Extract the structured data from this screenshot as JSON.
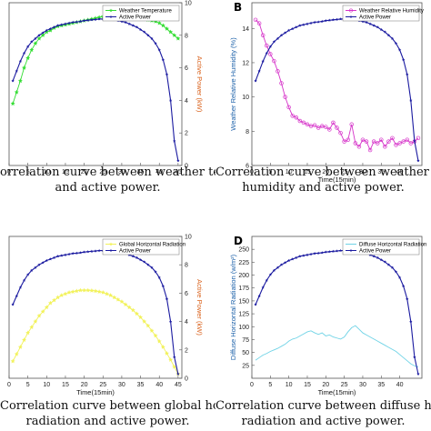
{
  "panels": [
    {
      "letter": "",
      "caption_line1": "orrelation curve between weather temperature",
      "caption_line2": "and active power.",
      "legend": [
        "Weather Temperature",
        "Active Power"
      ],
      "left_ylabel": "",
      "right_ylabel": "Active Power (kW)",
      "xlabel": "",
      "env_color": "#33dd33",
      "env_marker": "star",
      "power_color": "#1a1aa0",
      "right_label_color": "#d9601a"
    },
    {
      "letter": "B",
      "caption_line1": "Correlation curve between weather relati",
      "caption_line2": "humidity and active power.",
      "legend": [
        "Weather Relative Humidity",
        "Active Power"
      ],
      "left_ylabel": "Weather Relative Humidity (%)",
      "right_ylabel": "",
      "xlabel": "Time(15min)",
      "env_color": "#d633c9",
      "env_marker": "circle",
      "power_color": "#1a1aa0",
      "right_label_color": "#d9601a"
    },
    {
      "letter": "",
      "caption_line1": "Correlation curve between global horizontal",
      "caption_line2": "radiation and active power.",
      "legend": [
        "Global Horizontal Radiation",
        "Active Power"
      ],
      "left_ylabel": "",
      "right_ylabel": "Active Power (kW)",
      "xlabel": "Time(15min)",
      "env_color": "#f2f25a",
      "env_marker": "star",
      "power_color": "#1a1aa0",
      "right_label_color": "#d9601a"
    },
    {
      "letter": "D",
      "caption_line1": "Correlation curve between diffuse horizo",
      "caption_line2": "radiation and active power.",
      "legend": [
        "Diffuse Horizontal Radiation",
        "Active Power"
      ],
      "left_ylabel": "Diffuse Horizontal Radiation (w/m²)",
      "right_ylabel": "",
      "xlabel": "Time(15min)",
      "env_color": "#6fd3e6",
      "env_marker": "none",
      "power_color": "#1a1aa0",
      "right_label_color": "#d9601a"
    }
  ],
  "chart_data": [
    {
      "type": "line",
      "x": [
        1,
        2,
        3,
        4,
        5,
        6,
        7,
        8,
        9,
        10,
        11,
        12,
        13,
        14,
        15,
        16,
        17,
        18,
        19,
        20,
        21,
        22,
        23,
        24,
        25,
        26,
        27,
        28,
        29,
        30,
        31,
        32,
        33,
        34,
        35,
        36,
        37,
        38,
        39,
        40,
        41,
        42,
        43,
        44,
        45
      ],
      "xlim": [
        0,
        46
      ],
      "xticks": [
        0,
        5,
        10,
        15,
        20,
        25,
        30,
        35,
        40,
        45
      ],
      "left_ylim": [
        0,
        10
      ],
      "left_yticks": [],
      "right_ylim": [
        0,
        10
      ],
      "right_yticks": [
        0,
        2,
        4,
        6,
        8,
        10
      ],
      "series": [
        {
          "name": "Weather Temperature",
          "axis": "left",
          "values": [
            3.8,
            4.5,
            5.2,
            6.0,
            6.6,
            7.1,
            7.5,
            7.8,
            8.0,
            8.2,
            8.3,
            8.45,
            8.55,
            8.6,
            8.65,
            8.7,
            8.75,
            8.8,
            8.85,
            8.9,
            8.95,
            9.0,
            9.05,
            9.1,
            9.15,
            9.2,
            9.25,
            9.3,
            9.3,
            9.25,
            9.2,
            9.2,
            9.15,
            9.1,
            9.05,
            9.0,
            8.95,
            8.9,
            8.85,
            8.75,
            8.6,
            8.4,
            8.2,
            8.0,
            7.8
          ]
        },
        {
          "name": "Active Power",
          "axis": "right",
          "values": [
            5.2,
            5.8,
            6.4,
            6.9,
            7.3,
            7.6,
            7.8,
            8.0,
            8.15,
            8.3,
            8.4,
            8.5,
            8.6,
            8.65,
            8.7,
            8.75,
            8.8,
            8.82,
            8.85,
            8.9,
            8.92,
            8.95,
            8.97,
            9.0,
            9.0,
            9.0,
            8.98,
            8.95,
            8.9,
            8.85,
            8.8,
            8.7,
            8.6,
            8.5,
            8.35,
            8.2,
            8.0,
            7.8,
            7.5,
            7.1,
            6.5,
            5.6,
            4.0,
            1.5,
            0.3
          ]
        }
      ]
    },
    {
      "type": "line",
      "x": [
        1,
        2,
        3,
        4,
        5,
        6,
        7,
        8,
        9,
        10,
        11,
        12,
        13,
        14,
        15,
        16,
        17,
        18,
        19,
        20,
        21,
        22,
        23,
        24,
        25,
        26,
        27,
        28,
        29,
        30,
        31,
        32,
        33,
        34,
        35,
        36,
        37,
        38,
        39,
        40,
        41,
        42,
        43,
        44,
        45
      ],
      "xlim": [
        0,
        46
      ],
      "xticks": [
        0,
        5,
        10,
        15,
        20,
        25,
        30,
        35,
        40
      ],
      "left_ylim": [
        6,
        15.5
      ],
      "left_yticks": [
        6,
        8,
        10,
        12,
        14
      ],
      "right_ylim": [
        0,
        10
      ],
      "right_yticks": [],
      "series": [
        {
          "name": "Weather Relative Humidity",
          "axis": "left",
          "values": [
            14.5,
            14.3,
            13.6,
            13.0,
            12.5,
            12.1,
            11.5,
            10.8,
            10.0,
            9.4,
            8.9,
            8.8,
            8.6,
            8.5,
            8.4,
            8.3,
            8.35,
            8.2,
            8.3,
            8.25,
            8.1,
            8.5,
            8.2,
            7.9,
            7.4,
            7.5,
            8.4,
            7.3,
            7.1,
            7.5,
            7.4,
            6.9,
            7.4,
            7.3,
            7.5,
            7.1,
            7.4,
            7.6,
            7.2,
            7.3,
            7.4,
            7.5,
            7.3,
            7.4,
            7.6
          ]
        },
        {
          "name": "Active Power",
          "axis": "right",
          "values": [
            5.2,
            5.8,
            6.4,
            6.9,
            7.3,
            7.6,
            7.8,
            8.0,
            8.15,
            8.3,
            8.4,
            8.5,
            8.6,
            8.65,
            8.7,
            8.75,
            8.8,
            8.82,
            8.85,
            8.9,
            8.92,
            8.95,
            8.97,
            9.0,
            9.0,
            9.0,
            8.98,
            8.95,
            8.9,
            8.85,
            8.8,
            8.7,
            8.6,
            8.5,
            8.35,
            8.2,
            8.0,
            7.8,
            7.5,
            7.1,
            6.5,
            5.6,
            4.0,
            1.5,
            0.3
          ]
        }
      ]
    },
    {
      "type": "line",
      "x": [
        1,
        2,
        3,
        4,
        5,
        6,
        7,
        8,
        9,
        10,
        11,
        12,
        13,
        14,
        15,
        16,
        17,
        18,
        19,
        20,
        21,
        22,
        23,
        24,
        25,
        26,
        27,
        28,
        29,
        30,
        31,
        32,
        33,
        34,
        35,
        36,
        37,
        38,
        39,
        40,
        41,
        42,
        43,
        44,
        45
      ],
      "xlim": [
        0,
        46
      ],
      "xticks": [
        0,
        5,
        10,
        15,
        20,
        25,
        30,
        35,
        40,
        45
      ],
      "left_ylim": [
        0,
        10
      ],
      "left_yticks": [],
      "right_ylim": [
        0,
        10
      ],
      "right_yticks": [
        0,
        2,
        4,
        6,
        8,
        10
      ],
      "series": [
        {
          "name": "Global Horizontal Radiation",
          "axis": "left",
          "values": [
            1.2,
            1.7,
            2.2,
            2.7,
            3.2,
            3.6,
            4.0,
            4.4,
            4.7,
            5.0,
            5.3,
            5.5,
            5.7,
            5.85,
            5.95,
            6.05,
            6.1,
            6.15,
            6.2,
            6.2,
            6.2,
            6.18,
            6.15,
            6.1,
            6.05,
            5.95,
            5.85,
            5.7,
            5.55,
            5.4,
            5.2,
            5.0,
            4.8,
            4.55,
            4.3,
            4.0,
            3.7,
            3.35,
            3.0,
            2.6,
            2.2,
            1.75,
            1.3,
            0.8,
            0.3
          ]
        },
        {
          "name": "Active Power",
          "axis": "right",
          "values": [
            5.2,
            5.8,
            6.4,
            6.9,
            7.3,
            7.6,
            7.8,
            8.0,
            8.15,
            8.3,
            8.4,
            8.5,
            8.6,
            8.65,
            8.7,
            8.75,
            8.8,
            8.82,
            8.85,
            8.9,
            8.92,
            8.95,
            8.97,
            9.0,
            9.0,
            9.0,
            8.98,
            8.95,
            8.9,
            8.85,
            8.8,
            8.7,
            8.6,
            8.5,
            8.35,
            8.2,
            8.0,
            7.8,
            7.5,
            7.1,
            6.5,
            5.6,
            4.0,
            1.5,
            0.3
          ]
        }
      ]
    },
    {
      "type": "line",
      "x": [
        1,
        2,
        3,
        4,
        5,
        6,
        7,
        8,
        9,
        10,
        11,
        12,
        13,
        14,
        15,
        16,
        17,
        18,
        19,
        20,
        21,
        22,
        23,
        24,
        25,
        26,
        27,
        28,
        29,
        30,
        31,
        32,
        33,
        34,
        35,
        36,
        37,
        38,
        39,
        40,
        41,
        42,
        43,
        44,
        45
      ],
      "xlim": [
        0,
        46
      ],
      "xticks": [
        0,
        5,
        10,
        15,
        20,
        25,
        30,
        35,
        40
      ],
      "left_ylim": [
        0,
        275
      ],
      "left_yticks": [
        25,
        50,
        75,
        100,
        125,
        150,
        175,
        200,
        225,
        250
      ],
      "right_ylim": [
        0,
        10
      ],
      "right_yticks": [],
      "series": [
        {
          "name": "Diffuse Horizontal Radiation",
          "axis": "left",
          "values": [
            35,
            40,
            45,
            48,
            52,
            55,
            58,
            62,
            66,
            72,
            76,
            78,
            82,
            86,
            90,
            92,
            88,
            85,
            88,
            82,
            84,
            80,
            78,
            76,
            80,
            90,
            98,
            102,
            95,
            88,
            84,
            80,
            76,
            72,
            68,
            64,
            60,
            56,
            52,
            46,
            40,
            34,
            28,
            24,
            22
          ]
        },
        {
          "name": "Active Power",
          "axis": "right",
          "values": [
            5.2,
            5.8,
            6.4,
            6.9,
            7.3,
            7.6,
            7.8,
            8.0,
            8.15,
            8.3,
            8.4,
            8.5,
            8.6,
            8.65,
            8.7,
            8.75,
            8.8,
            8.82,
            8.85,
            8.9,
            8.92,
            8.95,
            8.97,
            9.0,
            9.0,
            9.0,
            8.98,
            8.95,
            8.9,
            8.85,
            8.8,
            8.7,
            8.6,
            8.5,
            8.35,
            8.2,
            8.0,
            7.8,
            7.5,
            7.1,
            6.5,
            5.6,
            4.0,
            1.5,
            0.3
          ]
        }
      ]
    }
  ]
}
